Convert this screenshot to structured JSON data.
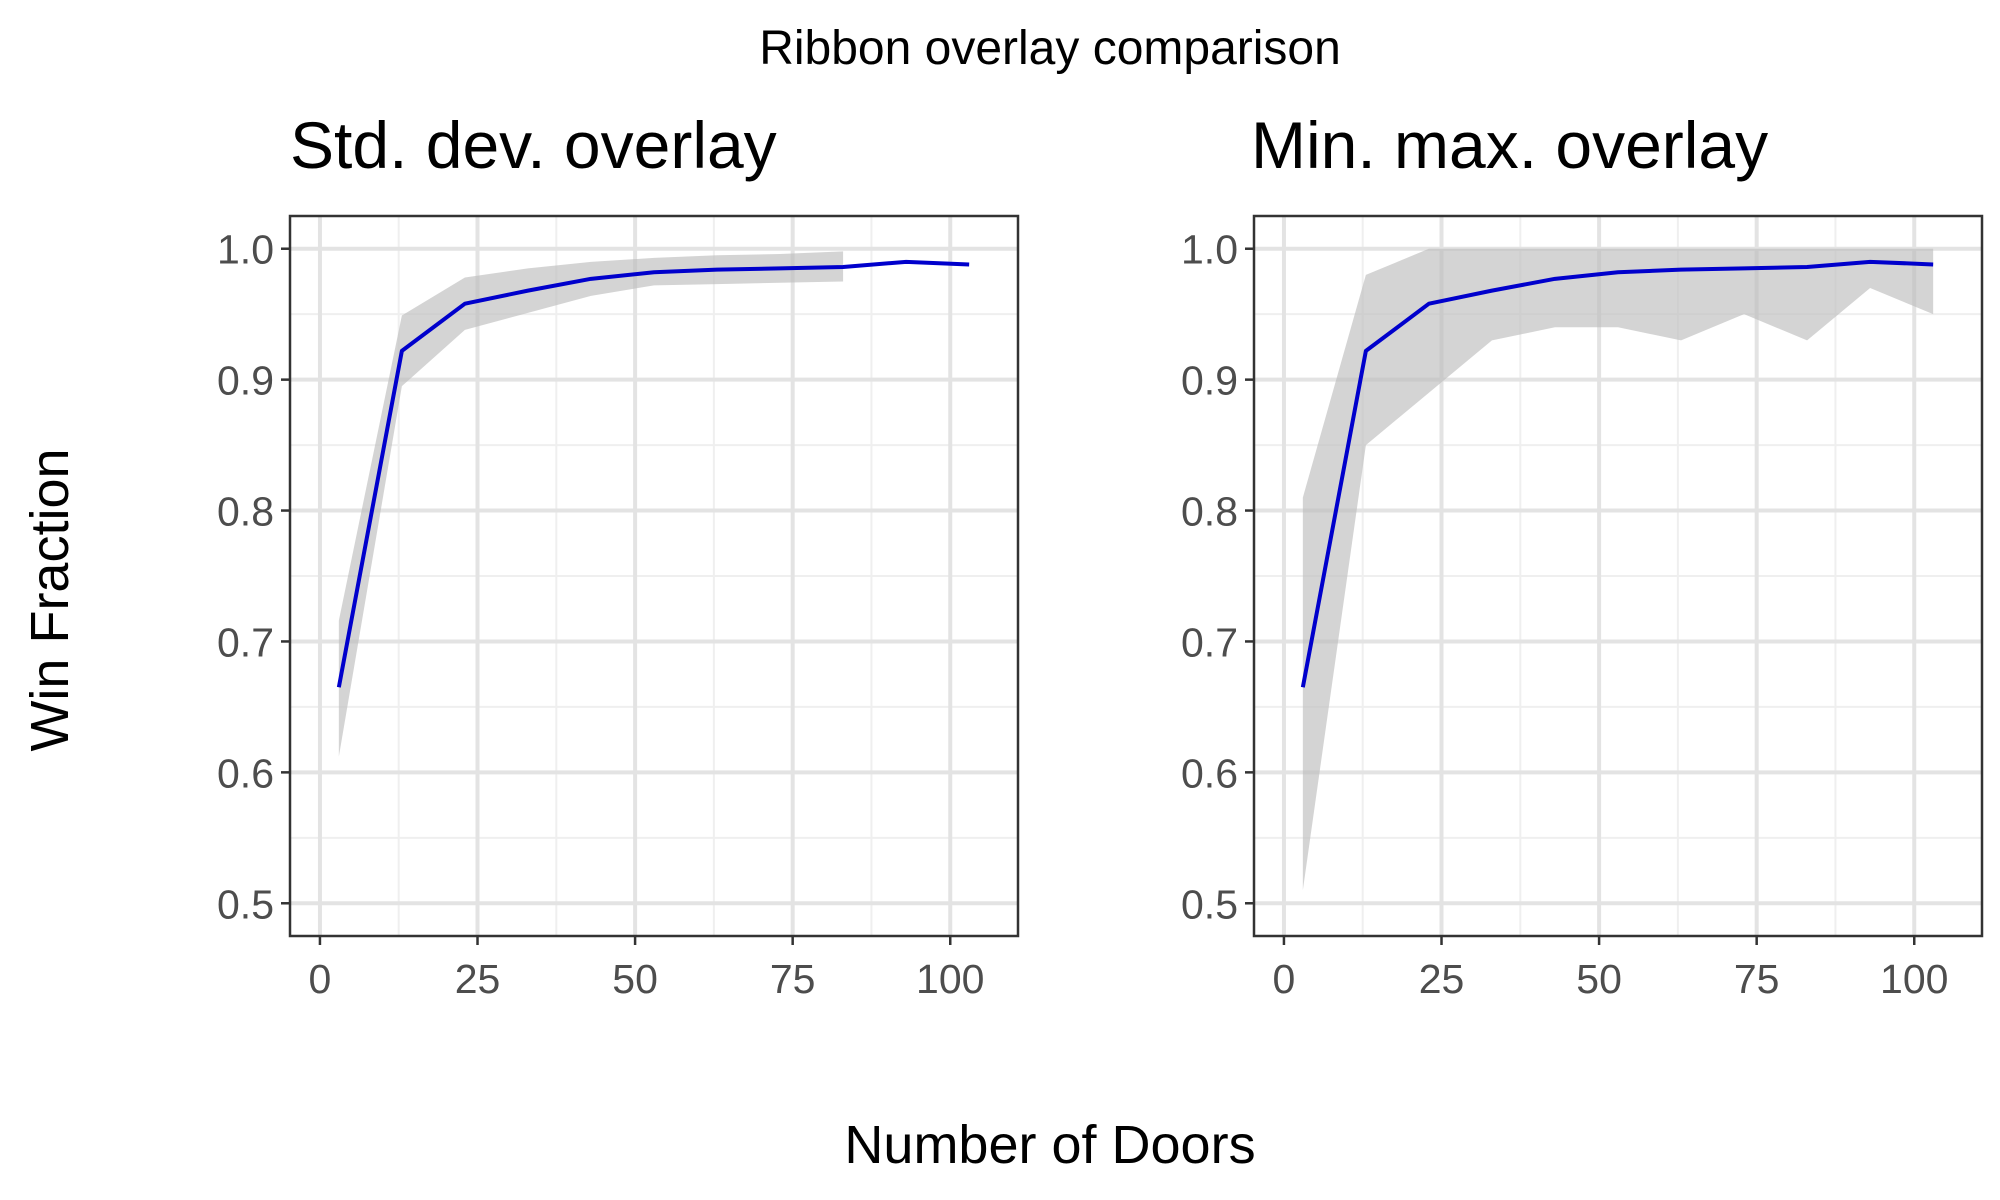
{
  "figure": {
    "title": "Ribbon overlay comparison",
    "xlabel": "Number of Doors",
    "ylabel": "Win Fraction"
  },
  "colors": {
    "line": "#0000cc",
    "ribbon": "#bdbdbd",
    "grid_major": "#e3e3e3",
    "grid_minor": "#efefef",
    "panel_border": "#333333",
    "tick_text": "#4d4d4d"
  },
  "chart_data": [
    {
      "type": "area",
      "title": "Std. dev. overlay",
      "xlim": [
        -4.75,
        110.75
      ],
      "ylim": [
        0.475,
        1.025
      ],
      "xticks": [
        0,
        25,
        50,
        75,
        100
      ],
      "xtick_labels": [
        "0",
        "25",
        "50",
        "75",
        "100"
      ],
      "yticks": [
        0.5,
        0.6,
        0.7,
        0.8,
        0.9,
        1.0
      ],
      "ytick_labels": [
        "0.5",
        "0.6",
        "0.7",
        "0.8",
        "0.9",
        "1.0"
      ],
      "grid": true,
      "series": [
        {
          "x": [
            3,
            13,
            23,
            33,
            43,
            53,
            63,
            73,
            83,
            93,
            103
          ],
          "y": [
            0.665,
            0.922,
            0.958,
            0.968,
            0.977,
            0.982,
            0.984,
            0.985,
            0.986,
            0.99,
            0.988
          ]
        }
      ],
      "ribbon": {
        "x": [
          3,
          13,
          23,
          33,
          43,
          53,
          63,
          73,
          83
        ],
        "ymin": [
          0.612,
          0.895,
          0.938,
          0.951,
          0.964,
          0.972,
          0.973,
          0.974,
          0.975
        ],
        "ymax": [
          0.716,
          0.949,
          0.978,
          0.985,
          0.99,
          0.993,
          0.995,
          0.996,
          0.998
        ]
      }
    },
    {
      "type": "area",
      "title": "Min. max. overlay",
      "xlim": [
        -4.75,
        110.75
      ],
      "ylim": [
        0.475,
        1.025
      ],
      "xticks": [
        0,
        25,
        50,
        75,
        100
      ],
      "xtick_labels": [
        "0",
        "25",
        "50",
        "75",
        "100"
      ],
      "yticks": [
        0.5,
        0.6,
        0.7,
        0.8,
        0.9,
        1.0
      ],
      "ytick_labels": [
        "0.5",
        "0.6",
        "0.7",
        "0.8",
        "0.9",
        "1.0"
      ],
      "grid": true,
      "series": [
        {
          "x": [
            3,
            13,
            23,
            33,
            43,
            53,
            63,
            73,
            83,
            93,
            103
          ],
          "y": [
            0.665,
            0.922,
            0.958,
            0.968,
            0.977,
            0.982,
            0.984,
            0.985,
            0.986,
            0.99,
            0.988
          ]
        }
      ],
      "ribbon": {
        "x": [
          3,
          13,
          23,
          33,
          43,
          53,
          63,
          73,
          83,
          93,
          103
        ],
        "ymin": [
          0.51,
          0.85,
          0.89,
          0.93,
          0.94,
          0.94,
          0.93,
          0.95,
          0.93,
          0.97,
          0.95
        ],
        "ymax": [
          0.81,
          0.98,
          1.0,
          1.0,
          1.0,
          1.0,
          1.0,
          1.0,
          1.0,
          1.0,
          1.0
        ]
      }
    }
  ]
}
